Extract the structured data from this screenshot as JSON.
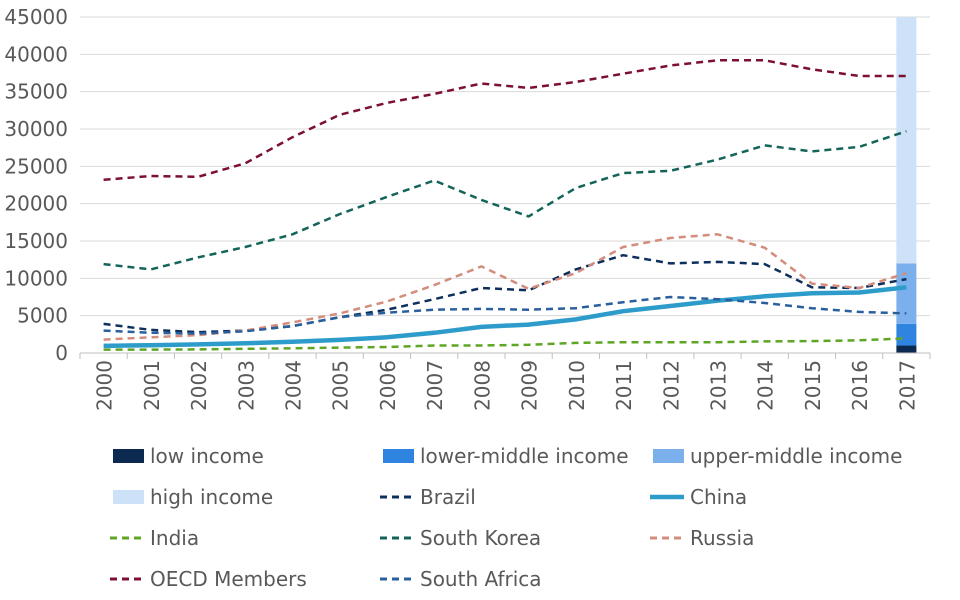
{
  "chart_data": {
    "type": "line",
    "x": [
      "2000",
      "2001",
      "2002",
      "2003",
      "2004",
      "2005",
      "2006",
      "2007",
      "2008",
      "2009",
      "2010",
      "2011",
      "2012",
      "2013",
      "2014",
      "2015",
      "2016",
      "2017"
    ],
    "ylim": [
      0,
      45000
    ],
    "yticks": [
      "0",
      "5000",
      "10000",
      "15000",
      "20000",
      "25000",
      "30000",
      "35000",
      "40000",
      "45000"
    ],
    "grid": true,
    "legend_position": "bottom",
    "series": [
      {
        "name": "Brazil",
        "style": "dashed",
        "color": "#0d2f5e",
        "values": [
          3900,
          3100,
          2800,
          3000,
          3600,
          4800,
          5800,
          7200,
          8700,
          8400,
          11200,
          13100,
          12000,
          12200,
          11900,
          8800,
          8700,
          9900
        ]
      },
      {
        "name": "China",
        "style": "solid",
        "color": "#2e9ccb",
        "values": [
          950,
          1050,
          1150,
          1300,
          1500,
          1750,
          2100,
          2700,
          3500,
          3800,
          4500,
          5600,
          6300,
          7000,
          7600,
          8000,
          8100,
          8800
        ]
      },
      {
        "name": "India",
        "style": "dashed",
        "color": "#5ea624",
        "values": [
          450,
          450,
          480,
          560,
          630,
          720,
          800,
          1000,
          1000,
          1100,
          1350,
          1450,
          1450,
          1450,
          1550,
          1600,
          1700,
          1950
        ]
      },
      {
        "name": "South Korea",
        "style": "dashed",
        "color": "#146459",
        "values": [
          11900,
          11200,
          12800,
          14200,
          15900,
          18600,
          20900,
          23100,
          20500,
          18300,
          22100,
          24100,
          24400,
          25900,
          27800,
          27000,
          27600,
          29700
        ]
      },
      {
        "name": "Russia",
        "style": "dashed",
        "color": "#d48c7c",
        "values": [
          1800,
          2100,
          2400,
          3000,
          4100,
          5300,
          6900,
          9100,
          11600,
          8600,
          10700,
          14200,
          15400,
          15900,
          14100,
          9300,
          8700,
          10700
        ]
      },
      {
        "name": "OECD Members",
        "style": "dashed",
        "color": "#7d1030",
        "values": [
          23200,
          23700,
          23600,
          25400,
          28900,
          31900,
          33500,
          34700,
          36100,
          35500,
          36300,
          37400,
          38500,
          39200,
          39200,
          38000,
          37100,
          37100
        ]
      },
      {
        "name": "South Africa",
        "style": "dashed",
        "color": "#2a5f9e",
        "values": [
          3000,
          2700,
          2600,
          2900,
          3600,
          4800,
          5400,
          5800,
          5900,
          5800,
          6000,
          6800,
          7500,
          7200,
          6700,
          6000,
          5500,
          5300
        ]
      }
    ],
    "income_thresholds_2017": [
      {
        "name": "low income",
        "color": "#0c2a4f",
        "from": 0,
        "to": 1000
      },
      {
        "name": "lower-middle income",
        "color": "#2f84e0",
        "from": 1000,
        "to": 3900
      },
      {
        "name": "upper-middle income",
        "color": "#7cb0ec",
        "from": 3900,
        "to": 12000
      },
      {
        "name": "high income",
        "color": "#cde1f8",
        "from": 12000,
        "to": 45000
      }
    ]
  },
  "legend": [
    {
      "label": "low income",
      "kind": "box",
      "color": "#0c2a4f"
    },
    {
      "label": "lower-middle income",
      "kind": "box",
      "color": "#2f84e0"
    },
    {
      "label": "upper-middle income",
      "kind": "box",
      "color": "#7cb0ec"
    },
    {
      "label": "high income",
      "kind": "box",
      "color": "#cde1f8"
    },
    {
      "label": "Brazil",
      "kind": "dashed",
      "color": "#0d2f5e"
    },
    {
      "label": "China",
      "kind": "solid",
      "color": "#2e9ccb"
    },
    {
      "label": "India",
      "kind": "dashed",
      "color": "#5ea624"
    },
    {
      "label": "South Korea",
      "kind": "dashed",
      "color": "#146459"
    },
    {
      "label": "Russia",
      "kind": "dashed",
      "color": "#d48c7c"
    },
    {
      "label": "OECD Members",
      "kind": "dashed",
      "color": "#7d1030"
    },
    {
      "label": "South Africa",
      "kind": "dashed",
      "color": "#2a5f9e"
    }
  ]
}
